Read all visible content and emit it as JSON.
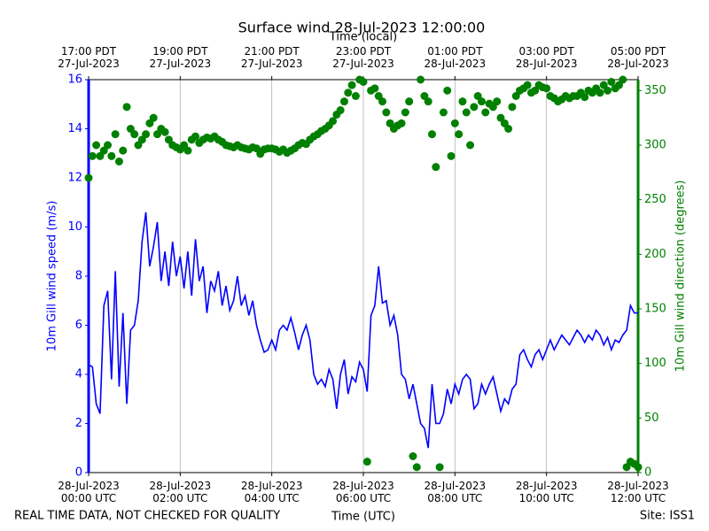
{
  "chart_data": {
    "type": "line",
    "title": "Surface wind 28-Jul-2023 12:00:00",
    "xlabel": "Time (UTC)",
    "x2label": "Time (local)",
    "ylabel": "10m Gill wind speed (m/s)",
    "y2label": "10m Gill wind direction (degrees)",
    "note": "REAL TIME DATA, NOT CHECKED FOR QUALITY",
    "site": "Site: ISS1",
    "grid": true,
    "xlim": [
      "2023-07-28T00:00",
      "2023-07-28T12:00"
    ],
    "xticks": [
      {
        "value": "2023-07-28T00:00",
        "label": "28-Jul-2023\n00:00 UTC"
      },
      {
        "value": "2023-07-28T02:00",
        "label": "28-Jul-2023\n02:00 UTC"
      },
      {
        "value": "2023-07-28T04:00",
        "label": "28-Jul-2023\n04:00 UTC"
      },
      {
        "value": "2023-07-28T06:00",
        "label": "28-Jul-2023\n06:00 UTC"
      },
      {
        "value": "2023-07-28T08:00",
        "label": "28-Jul-2023\n08:00 UTC"
      },
      {
        "value": "2023-07-28T10:00",
        "label": "28-Jul-2023\n10:00 UTC"
      },
      {
        "value": "2023-07-28T12:00",
        "label": "28-Jul-2023\n12:00 UTC"
      }
    ],
    "x2lim": [
      "2023-07-27T17:00",
      "2023-07-28T05:00"
    ],
    "x2ticks": [
      {
        "value": "2023-07-27T17:00",
        "label": "17:00 PDT\n27-Jul-2023"
      },
      {
        "value": "2023-07-27T19:00",
        "label": "19:00 PDT\n27-Jul-2023"
      },
      {
        "value": "2023-07-27T21:00",
        "label": "21:00 PDT\n27-Jul-2023"
      },
      {
        "value": "2023-07-27T23:00",
        "label": "23:00 PDT\n27-Jul-2023"
      },
      {
        "value": "2023-07-28T01:00",
        "label": "01:00 PDT\n28-Jul-2023"
      },
      {
        "value": "2023-07-28T03:00",
        "label": "03:00 PDT\n28-Jul-2023"
      },
      {
        "value": "2023-07-28T05:00",
        "label": "05:00 PDT\n28-Jul-2023"
      }
    ],
    "ylim": [
      0,
      16
    ],
    "yticks": [
      0,
      2,
      4,
      6,
      8,
      10,
      12,
      14,
      16
    ],
    "y2lim": [
      0,
      360
    ],
    "y2ticks": [
      0,
      50,
      100,
      150,
      200,
      250,
      300,
      350
    ],
    "x": [
      "2023-07-28T00:00",
      "2023-07-28T00:05",
      "2023-07-28T00:10",
      "2023-07-28T00:15",
      "2023-07-28T00:20",
      "2023-07-28T00:25",
      "2023-07-28T00:30",
      "2023-07-28T00:35",
      "2023-07-28T00:40",
      "2023-07-28T00:45",
      "2023-07-28T00:50",
      "2023-07-28T00:55",
      "2023-07-28T01:00",
      "2023-07-28T01:05",
      "2023-07-28T01:10",
      "2023-07-28T01:15",
      "2023-07-28T01:20",
      "2023-07-28T01:25",
      "2023-07-28T01:30",
      "2023-07-28T01:35",
      "2023-07-28T01:40",
      "2023-07-28T01:45",
      "2023-07-28T01:50",
      "2023-07-28T01:55",
      "2023-07-28T02:00",
      "2023-07-28T02:05",
      "2023-07-28T02:10",
      "2023-07-28T02:15",
      "2023-07-28T02:20",
      "2023-07-28T02:25",
      "2023-07-28T02:30",
      "2023-07-28T02:35",
      "2023-07-28T02:40",
      "2023-07-28T02:45",
      "2023-07-28T02:50",
      "2023-07-28T02:55",
      "2023-07-28T03:00",
      "2023-07-28T03:05",
      "2023-07-28T03:10",
      "2023-07-28T03:15",
      "2023-07-28T03:20",
      "2023-07-28T03:25",
      "2023-07-28T03:30",
      "2023-07-28T03:35",
      "2023-07-28T03:40",
      "2023-07-28T03:45",
      "2023-07-28T03:50",
      "2023-07-28T03:55",
      "2023-07-28T04:00",
      "2023-07-28T04:05",
      "2023-07-28T04:10",
      "2023-07-28T04:15",
      "2023-07-28T04:20",
      "2023-07-28T04:25",
      "2023-07-28T04:30",
      "2023-07-28T04:35",
      "2023-07-28T04:40",
      "2023-07-28T04:45",
      "2023-07-28T04:50",
      "2023-07-28T04:55",
      "2023-07-28T05:00",
      "2023-07-28T05:05",
      "2023-07-28T05:10",
      "2023-07-28T05:15",
      "2023-07-28T05:20",
      "2023-07-28T05:25",
      "2023-07-28T05:30",
      "2023-07-28T05:35",
      "2023-07-28T05:40",
      "2023-07-28T05:45",
      "2023-07-28T05:50",
      "2023-07-28T05:55",
      "2023-07-28T06:00",
      "2023-07-28T06:05",
      "2023-07-28T06:10",
      "2023-07-28T06:15",
      "2023-07-28T06:20",
      "2023-07-28T06:25",
      "2023-07-28T06:30",
      "2023-07-28T06:35",
      "2023-07-28T06:40",
      "2023-07-28T06:45",
      "2023-07-28T06:50",
      "2023-07-28T06:55",
      "2023-07-28T07:00",
      "2023-07-28T07:05",
      "2023-07-28T07:10",
      "2023-07-28T07:15",
      "2023-07-28T07:20",
      "2023-07-28T07:25",
      "2023-07-28T07:30",
      "2023-07-28T07:35",
      "2023-07-28T07:40",
      "2023-07-28T07:45",
      "2023-07-28T07:50",
      "2023-07-28T07:55",
      "2023-07-28T08:00",
      "2023-07-28T08:05",
      "2023-07-28T08:10",
      "2023-07-28T08:15",
      "2023-07-28T08:20",
      "2023-07-28T08:25",
      "2023-07-28T08:30",
      "2023-07-28T08:35",
      "2023-07-28T08:40",
      "2023-07-28T08:45",
      "2023-07-28T08:50",
      "2023-07-28T08:55",
      "2023-07-28T09:00",
      "2023-07-28T09:05",
      "2023-07-28T09:10",
      "2023-07-28T09:15",
      "2023-07-28T09:20",
      "2023-07-28T09:25",
      "2023-07-28T09:30",
      "2023-07-28T09:35",
      "2023-07-28T09:40",
      "2023-07-28T09:45",
      "2023-07-28T09:50",
      "2023-07-28T09:55",
      "2023-07-28T10:00",
      "2023-07-28T10:05",
      "2023-07-28T10:10",
      "2023-07-28T10:15",
      "2023-07-28T10:20",
      "2023-07-28T10:25",
      "2023-07-28T10:30",
      "2023-07-28T10:35",
      "2023-07-28T10:40",
      "2023-07-28T10:45",
      "2023-07-28T10:50",
      "2023-07-28T10:55",
      "2023-07-28T11:00",
      "2023-07-28T11:05",
      "2023-07-28T11:10",
      "2023-07-28T11:15",
      "2023-07-28T11:20",
      "2023-07-28T11:25",
      "2023-07-28T11:30",
      "2023-07-28T11:35",
      "2023-07-28T11:40",
      "2023-07-28T11:45",
      "2023-07-28T11:50",
      "2023-07-28T11:55",
      "2023-07-28T12:00"
    ],
    "series": [
      {
        "type": "line",
        "color": "#0000ff",
        "values": [
          4.4,
          4.3,
          2.8,
          2.4,
          6.8,
          7.4,
          3.8,
          8.2,
          3.5,
          6.5,
          2.8,
          5.8,
          6.0,
          7.0,
          9.4,
          10.6,
          8.4,
          9.2,
          10.2,
          7.8,
          9.0,
          7.6,
          9.4,
          8.0,
          8.8,
          7.5,
          9.0,
          7.2,
          9.5,
          7.8,
          8.4,
          6.5,
          7.8,
          7.4,
          8.2,
          6.8,
          7.6,
          6.6,
          7.0,
          8.0,
          6.8,
          7.2,
          6.4,
          7.0,
          6.0,
          5.4,
          4.9,
          5.0,
          5.4,
          5.0,
          5.8,
          6.0,
          5.8,
          6.3,
          5.7,
          5.0,
          5.6,
          6.0,
          5.4,
          4.0,
          3.6,
          3.8,
          3.5,
          4.2,
          3.8,
          2.6,
          4.0,
          4.6,
          3.2,
          3.9,
          3.7,
          4.5,
          4.2,
          3.3,
          6.4,
          6.8,
          8.4,
          6.9,
          7.0,
          6.0,
          6.4,
          5.6,
          4.0,
          3.8,
          3.0,
          3.6,
          2.8,
          2.0,
          1.8,
          1.0,
          3.6,
          2.0,
          2.0,
          2.4,
          3.4,
          2.8,
          3.6,
          3.2,
          3.8,
          4.0,
          3.8,
          2.6,
          2.8,
          3.6,
          3.2,
          3.6,
          3.9,
          3.2,
          2.5,
          3.0,
          2.8,
          3.4,
          3.6,
          4.8,
          5.0,
          4.6,
          4.3,
          4.8,
          5.0,
          4.6,
          5.0,
          5.4,
          5.0,
          5.3,
          5.6,
          5.4,
          5.2,
          5.5,
          5.8,
          5.6,
          5.3,
          5.6,
          5.4,
          5.8,
          5.6,
          5.2,
          5.5,
          5.0,
          5.4,
          5.3,
          5.6,
          5.8,
          6.8,
          6.5,
          6.5
        ]
      },
      {
        "type": "scatter",
        "axis": "y2",
        "color": "#008000",
        "values": [
          270,
          290,
          300,
          290,
          295,
          300,
          290,
          310,
          285,
          295,
          335,
          315,
          310,
          300,
          305,
          310,
          320,
          325,
          310,
          315,
          312,
          305,
          300,
          298,
          296,
          300,
          295,
          305,
          308,
          302,
          305,
          307,
          306,
          308,
          305,
          303,
          300,
          299,
          298,
          300,
          298,
          297,
          296,
          298,
          297,
          292,
          296,
          297,
          297,
          296,
          294,
          296,
          293,
          295,
          297,
          300,
          302,
          301,
          305,
          308,
          310,
          313,
          315,
          318,
          322,
          328,
          332,
          340,
          348,
          355,
          345,
          360,
          358,
          10,
          350,
          352,
          345,
          340,
          330,
          320,
          315,
          318,
          320,
          330,
          340,
          15,
          5,
          360,
          345,
          340,
          310,
          280,
          5,
          330,
          350,
          290,
          320,
          310,
          340,
          330,
          300,
          335,
          345,
          340,
          330,
          338,
          335,
          340,
          325,
          320,
          315,
          335,
          345,
          350,
          352,
          355,
          348,
          350,
          355,
          353,
          352,
          345,
          343,
          340,
          342,
          345,
          343,
          345,
          345,
          348,
          344,
          350,
          348,
          352,
          348,
          355,
          350,
          358,
          352,
          355,
          360,
          5,
          10,
          8,
          5
        ]
      }
    ]
  }
}
